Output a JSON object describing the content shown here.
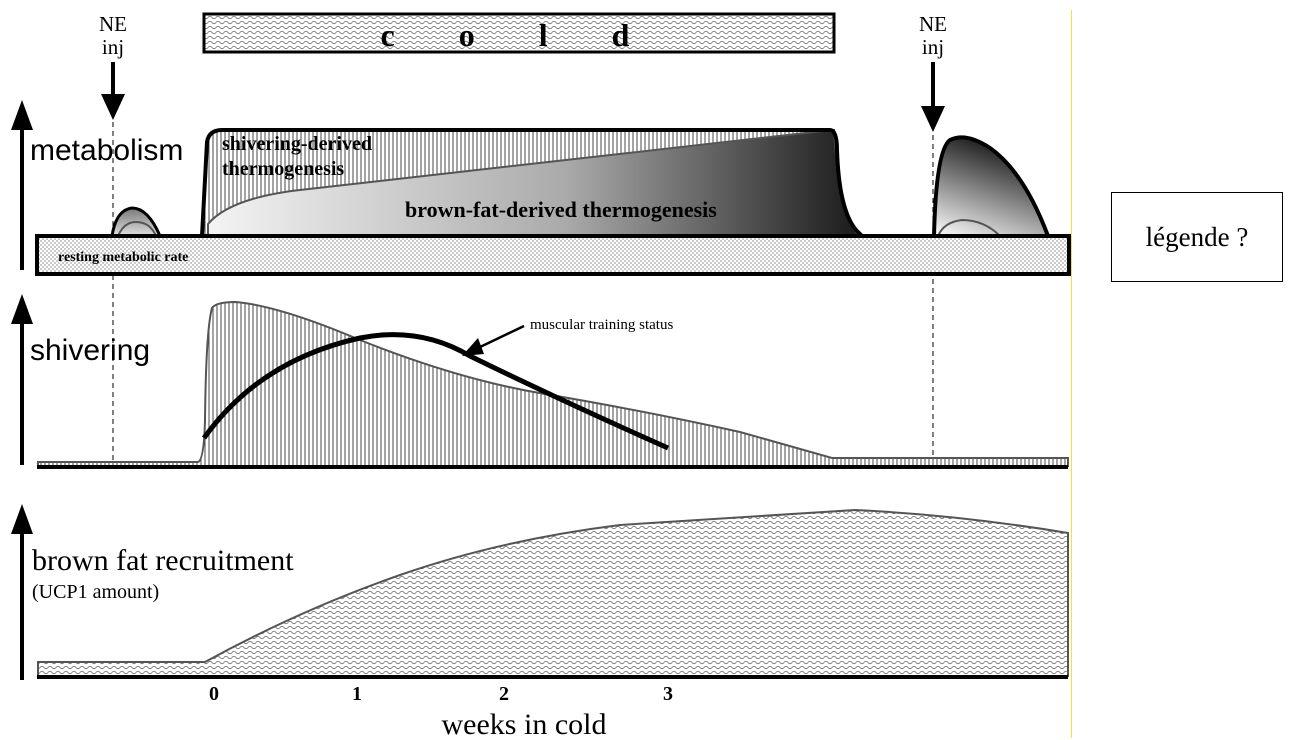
{
  "top_bar": {
    "label": "c o l d"
  },
  "annotations": {
    "ne_left": [
      "NE",
      "inj"
    ],
    "ne_right": [
      "NE",
      "inj"
    ],
    "muscular_training": "muscular training status"
  },
  "panels": {
    "metabolism": {
      "label": "metabolism",
      "shivering_derived": [
        "shivering-derived",
        "thermogenesis"
      ],
      "brown_fat_derived": "brown-fat-derived thermogenesis",
      "resting": "resting metabolic rate"
    },
    "shivering": {
      "label": "shivering"
    },
    "brown_fat": {
      "label": "brown fat recruitment",
      "sublabel": "(UCP1 amount)"
    }
  },
  "x_axis": {
    "label": "weeks in cold",
    "ticks": [
      "0",
      "1",
      "2",
      "3"
    ]
  },
  "legend": {
    "text": "légende ?"
  },
  "colors": {
    "ink": "#000000",
    "grey_line": "#555555",
    "highlight": "#f2e04a"
  }
}
